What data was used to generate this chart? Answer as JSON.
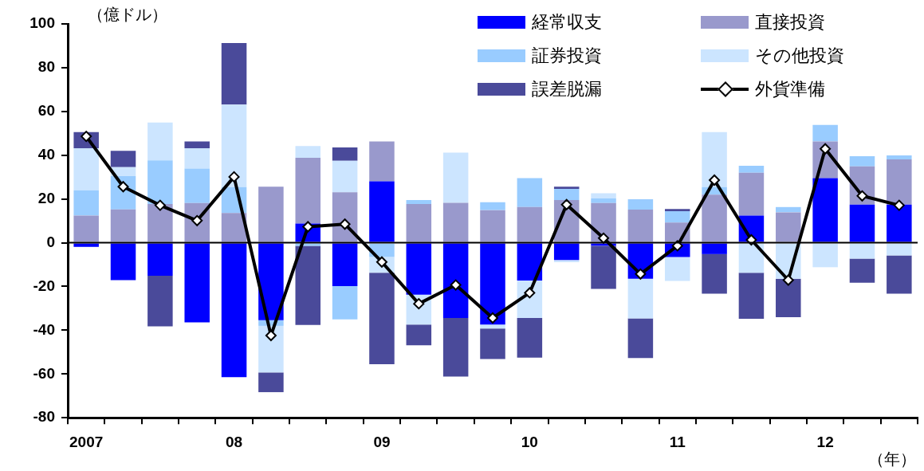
{
  "chart_data": {
    "type": "bar",
    "stacked": true,
    "ylabel": "（億ドル）",
    "xlabel": "（年）",
    "categories": [
      "2007",
      null,
      null,
      null,
      "08",
      null,
      null,
      null,
      "09",
      null,
      null,
      null,
      "10",
      null,
      null,
      null,
      "11",
      null,
      null,
      null,
      "12",
      null,
      null
    ],
    "series": [
      {
        "name": "経常収支",
        "color": "#0000ff",
        "values": [
          -1.9,
          -17.1,
          -15.1,
          -36.4,
          -61.4,
          -35.4,
          8.8,
          -19.8,
          28.1,
          -23.7,
          -34.4,
          -37.4,
          -17.3,
          -7.9,
          -1.4,
          -16.5,
          -6.5,
          -5.2,
          12.4,
          0,
          29.5,
          17.4,
          17.4
        ]
      },
      {
        "name": "直接投資",
        "color": "#9999cc",
        "values": [
          12.4,
          15.2,
          17.7,
          18.1,
          13.6,
          25.6,
          30.0,
          23.1,
          18.2,
          17.7,
          18.2,
          14.9,
          16.3,
          19.5,
          18.1,
          15.1,
          9.2,
          22.0,
          19.6,
          13.9,
          16.8,
          17.5,
          20.7
        ]
      },
      {
        "name": "証券投資",
        "color": "#99ccff",
        "values": [
          11.6,
          15.2,
          19.9,
          15.8,
          11.8,
          -2.6,
          -1.4,
          -15.2,
          -6.5,
          1.8,
          0,
          3.6,
          13.2,
          5.1,
          2.1,
          4.8,
          5.2,
          3.4,
          3.2,
          2.4,
          7.5,
          4.6,
          1.8
        ]
      },
      {
        "name": "その他投資",
        "color": "#cce5ff",
        "values": [
          19.2,
          4.1,
          17.3,
          9.3,
          37.7,
          -21.3,
          5.4,
          14.3,
          -7.2,
          -13.7,
          23.0,
          -1.8,
          -17.1,
          -1.0,
          2.4,
          -18.1,
          -11.0,
          25.2,
          -13.7,
          -16.5,
          -11.2,
          -7.3,
          -5.8
        ]
      },
      {
        "name": "誤差脱漏",
        "color": "#4a4a9a",
        "values": [
          7.4,
          7.5,
          -23.1,
          3.1,
          28.2,
          -9.0,
          -36.2,
          6.1,
          -41.8,
          -9.5,
          -26.8,
          -14.0,
          -18.1,
          1.0,
          -19.7,
          -18.1,
          1.0,
          -18.1,
          -21.1,
          -17.5,
          0,
          -11.0,
          -17.5
        ]
      },
      {
        "name": "外貨準備",
        "type": "line",
        "color": "#000000",
        "values": [
          48.6,
          25.6,
          17.1,
          10.1,
          30.1,
          -42.4,
          7.3,
          8.5,
          -8.8,
          -27.9,
          -19.3,
          -34.4,
          -22.9,
          17.4,
          2.1,
          -14.3,
          -1.4,
          28.6,
          1.3,
          -17.1,
          42.9,
          21.4,
          17.1
        ]
      }
    ],
    "ylim": [
      -80,
      100
    ],
    "yticks": [
      -80,
      -60,
      -40,
      -20,
      0,
      20,
      40,
      60,
      80,
      100
    ],
    "ref_lines": [
      {
        "axis": "y",
        "value": 0,
        "color": "#000000"
      }
    ],
    "grid": false,
    "legend": "top right",
    "marker": "diamond",
    "line_style": "solid"
  }
}
